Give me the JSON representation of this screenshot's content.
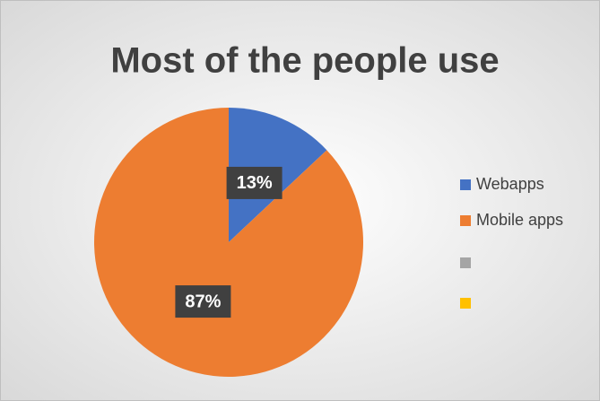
{
  "chart_data": {
    "type": "pie",
    "title": "Most of the people use",
    "categories": [
      "Webapps",
      "Mobile apps",
      null,
      null
    ],
    "values": [
      13,
      87,
      null,
      null
    ],
    "value_labels": [
      "13%",
      "87%",
      null,
      null
    ],
    "colors": [
      "#4472c4",
      "#ed7d31",
      "#a5a5a5",
      "#ffc000"
    ],
    "legend": "right"
  }
}
